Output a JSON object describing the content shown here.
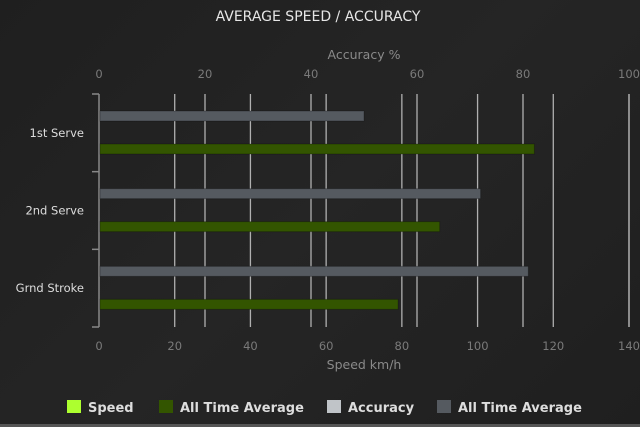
{
  "chart_data": {
    "type": "bar",
    "orientation": "horizontal",
    "title": "AVERAGE SPEED / ACCURACY",
    "categories": [
      "1st Serve",
      "2nd Serve",
      "Grnd Stroke"
    ],
    "x_axis_bottom": {
      "label": "Speed km/h",
      "range": [
        0,
        140
      ],
      "ticks": [
        "0",
        "20",
        "40",
        "60",
        "80",
        "100",
        "120",
        "140"
      ]
    },
    "x_axis_top": {
      "label": "Accuracy %",
      "range": [
        0,
        100
      ],
      "ticks": [
        "0",
        "20",
        "40",
        "60",
        "80",
        "100"
      ]
    },
    "grid": true,
    "legend_position": "bottom",
    "legend": [
      {
        "name": "Speed",
        "color": "#adff2f"
      },
      {
        "name": "All Time Average",
        "color": "#335500"
      },
      {
        "name": "Accuracy",
        "color": "#c0c4c8"
      },
      {
        "name": "All Time Average",
        "color": "#555a60"
      }
    ],
    "series": [
      {
        "name": "All Time Average",
        "axis": "accuracy",
        "color": "#555a60",
        "values": [
          50,
          72,
          81
        ]
      },
      {
        "name": "All Time Average",
        "axis": "speed",
        "color": "#335500",
        "values": [
          115,
          90,
          79
        ]
      }
    ]
  }
}
